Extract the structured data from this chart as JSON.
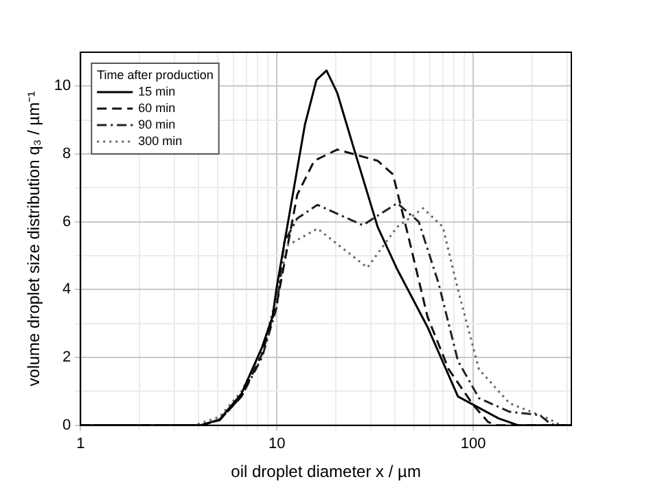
{
  "chart_data": {
    "type": "line",
    "xlabel": "oil droplet diameter x / µm",
    "ylabel": "volume droplet size distribution q₃ / µm⁻¹",
    "legend_title": "Time after production",
    "log": "x",
    "grid": true,
    "legend": "top left",
    "marker": "none",
    "xlim": [
      1,
      316
    ],
    "ylim": [
      0,
      11
    ],
    "xticks": [
      1,
      {
        "value": 2,
        "label": null
      },
      {
        "value": 3,
        "label": null
      },
      {
        "value": 4,
        "label": null
      },
      {
        "value": 5,
        "label": null
      },
      {
        "value": 6,
        "label": null
      },
      {
        "value": 7,
        "label": null
      },
      {
        "value": 8,
        "label": null
      },
      {
        "value": 9,
        "label": null
      },
      10,
      {
        "value": 20,
        "label": null
      },
      {
        "value": 30,
        "label": null
      },
      {
        "value": 40,
        "label": null
      },
      {
        "value": 50,
        "label": null
      },
      {
        "value": 60,
        "label": null
      },
      {
        "value": 70,
        "label": null
      },
      {
        "value": 80,
        "label": null
      },
      {
        "value": 90,
        "label": null
      },
      100,
      {
        "value": 200,
        "label": null
      },
      {
        "value": 300,
        "label": null
      }
    ],
    "yticks": [
      0,
      {
        "value": 1,
        "label": null
      },
      2,
      {
        "value": 3,
        "label": null
      },
      4,
      {
        "value": 5,
        "label": null
      },
      6,
      {
        "value": 7,
        "label": null
      },
      8,
      {
        "value": 9,
        "label": null
      },
      10
    ],
    "series": [
      {
        "name": "15 min",
        "color": "#000000",
        "line_style": "solid",
        "x": [
          1,
          4.1,
          5.1,
          6.6,
          8.4,
          9.5,
          10,
          13.9,
          15.9,
          17.9,
          20.3,
          25,
          32.6,
          41,
          58.5,
          83.6,
          135,
          170,
          316
        ],
        "values": [
          0,
          0,
          0.17,
          0.93,
          2.3,
          3.2,
          4.1,
          8.87,
          10.18,
          10.46,
          9.8,
          8.05,
          5.85,
          4.6,
          2.9,
          0.85,
          0.2,
          0,
          0
        ]
      },
      {
        "name": "60 min",
        "color": "#111111",
        "line_style": "dashed",
        "x": [
          1,
          4.1,
          5.1,
          6.6,
          8.4,
          10,
          12.7,
          15.5,
          20.3,
          32.6,
          39,
          46.6,
          58.5,
          75,
          100,
          119,
          130,
          316
        ],
        "values": [
          0,
          0,
          0.15,
          0.85,
          2.1,
          3.6,
          6.8,
          7.8,
          8.13,
          7.8,
          7.4,
          5.6,
          3.2,
          1.65,
          0.6,
          0.1,
          0,
          0
        ]
      },
      {
        "name": "90 min",
        "color": "#222222",
        "line_style": "dashdot",
        "x": [
          1,
          4.1,
          5.1,
          6.6,
          8.4,
          10,
          10.9,
          12.7,
          16.1,
          27.4,
          41,
          52.8,
          66.5,
          83.6,
          107,
          153,
          218,
          241,
          260,
          316
        ],
        "values": [
          0,
          0,
          0.15,
          0.85,
          2.0,
          3.5,
          5.4,
          6.1,
          6.5,
          5.9,
          6.55,
          6.0,
          4.2,
          1.9,
          0.8,
          0.4,
          0.3,
          0.1,
          0,
          0
        ]
      },
      {
        "name": "300 min",
        "color": "#666666",
        "line_style": "dotted",
        "x": [
          1,
          3.8,
          5.1,
          6.6,
          8.4,
          10,
          11.3,
          16.1,
          28.9,
          41,
          55.6,
          70,
          83.6,
          107,
          153,
          241,
          280,
          316
        ],
        "values": [
          0,
          0,
          0.25,
          1.0,
          2.2,
          3.8,
          5.3,
          5.8,
          4.65,
          5.85,
          6.4,
          5.85,
          4.0,
          1.65,
          0.65,
          0.2,
          0,
          0
        ]
      }
    ]
  }
}
